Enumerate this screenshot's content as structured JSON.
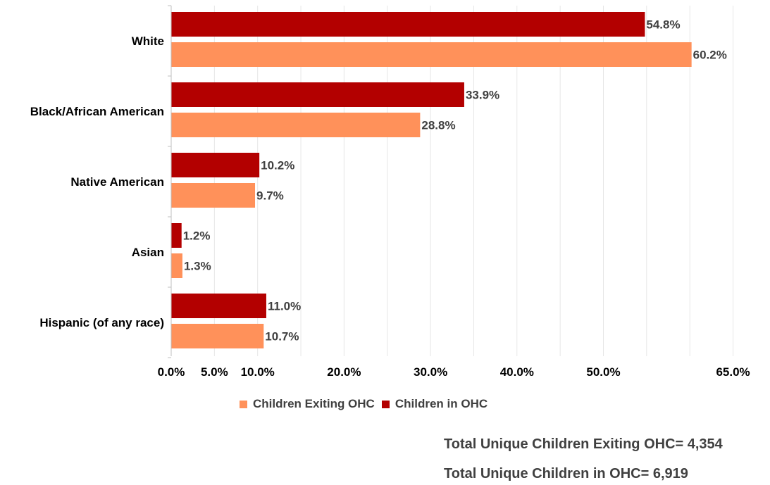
{
  "chart_data": {
    "type": "bar",
    "orientation": "horizontal",
    "categories": [
      "White",
      "Black/African American",
      "Native American",
      "Asian",
      "Hispanic (of any race)"
    ],
    "series": [
      {
        "name": "Children in OHC",
        "color": "#B30000",
        "values": [
          54.8,
          33.9,
          10.2,
          1.2,
          11.0
        ],
        "labels": [
          "54.8%",
          "33.9%",
          "10.2%",
          "1.2%",
          "11.0%"
        ]
      },
      {
        "name": "Children Exiting OHC",
        "color": "#FF915A",
        "values": [
          60.2,
          28.8,
          9.7,
          1.3,
          10.7
        ],
        "labels": [
          "60.2%",
          "28.8%",
          "9.7%",
          "1.3%",
          "10.7%"
        ]
      }
    ],
    "x_ticks": [
      0,
      5,
      10,
      20,
      30,
      40,
      50,
      65
    ],
    "x_tick_labels": [
      "0.0%",
      "5.0%",
      "10.0%",
      "20.0%",
      "30.0%",
      "40.0%",
      "50.0%",
      "65.0%"
    ],
    "xlim": [
      0,
      65
    ],
    "grid": true,
    "legend_position": "bottom"
  },
  "legend": {
    "exiting_label": "Children Exiting OHC",
    "in_label": "Children in OHC"
  },
  "totals": {
    "exiting": "Total Unique Children Exiting OHC= 4,354",
    "in_ohc": "Total Unique Children in OHC= 6,919"
  }
}
